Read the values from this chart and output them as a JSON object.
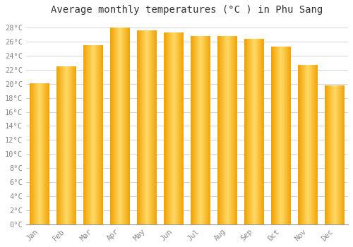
{
  "title": "Average monthly temperatures (°C ) in Phu Sang",
  "months": [
    "Jan",
    "Feb",
    "Mar",
    "Apr",
    "May",
    "Jun",
    "Jul",
    "Aug",
    "Sep",
    "Oct",
    "Nov",
    "Dec"
  ],
  "values": [
    20.1,
    22.5,
    25.5,
    28.0,
    27.6,
    27.3,
    26.8,
    26.8,
    26.4,
    25.3,
    22.7,
    19.8
  ],
  "bar_color_center": "#FFD966",
  "bar_color_edge": "#F0A000",
  "background_color": "#ffffff",
  "grid_color": "#cccccc",
  "ytick_step": 2,
  "ymin": 0,
  "ymax": 29,
  "title_fontsize": 10,
  "tick_fontsize": 7.5,
  "tick_color": "#888888",
  "font_family": "monospace"
}
